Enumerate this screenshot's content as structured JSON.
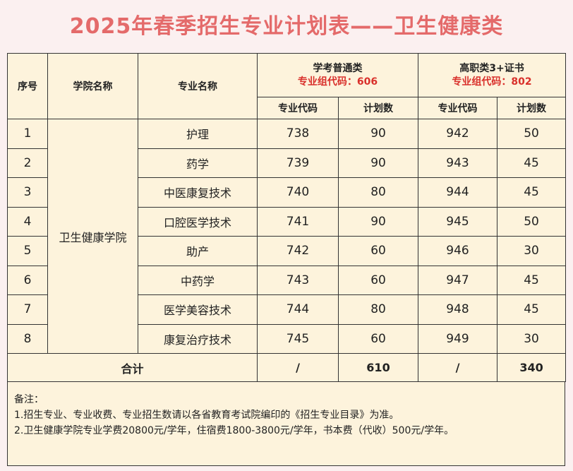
{
  "title": "2025年春季招生专业计划表——卫生健康类",
  "table": {
    "headers": {
      "seq": "序号",
      "college": "学院名称",
      "major": "专业名称",
      "group1_name": "学考普通类",
      "group1_code": "专业组代码：606",
      "group2_name": "高职类3+证书",
      "group2_code": "专业组代码：802",
      "code": "专业代码",
      "plan": "计划数"
    },
    "college_name": "卫生健康学院",
    "rows": [
      {
        "seq": "1",
        "major": "护理",
        "code1": "738",
        "plan1": "90",
        "code2": "942",
        "plan2": "50"
      },
      {
        "seq": "2",
        "major": "药学",
        "code1": "739",
        "plan1": "90",
        "code2": "943",
        "plan2": "45"
      },
      {
        "seq": "3",
        "major": "中医康复技术",
        "code1": "740",
        "plan1": "80",
        "code2": "944",
        "plan2": "45"
      },
      {
        "seq": "4",
        "major": "口腔医学技术",
        "code1": "741",
        "plan1": "90",
        "code2": "945",
        "plan2": "50"
      },
      {
        "seq": "5",
        "major": "助产",
        "code1": "742",
        "plan1": "60",
        "code2": "946",
        "plan2": "30"
      },
      {
        "seq": "6",
        "major": "中药学",
        "code1": "743",
        "plan1": "60",
        "code2": "947",
        "plan2": "45"
      },
      {
        "seq": "7",
        "major": "医学美容技术",
        "code1": "744",
        "plan1": "80",
        "code2": "948",
        "plan2": "45"
      },
      {
        "seq": "8",
        "major": "康复治疗技术",
        "code1": "745",
        "plan1": "60",
        "code2": "949",
        "plan2": "30"
      }
    ],
    "total": {
      "label": "合计",
      "code1": "/",
      "plan1": "610",
      "code2": "/",
      "plan2": "340"
    }
  },
  "notes": {
    "heading": "备注：",
    "lines": [
      "1.招生专业、专业收费、专业招生数请以各省教育考试院编印的《招生专业目录》为准。",
      "2.卫生健康学院专业学费20800元/学年，住宿费1800-3800元/学年，书本费（代收）500元/学年。"
    ]
  }
}
